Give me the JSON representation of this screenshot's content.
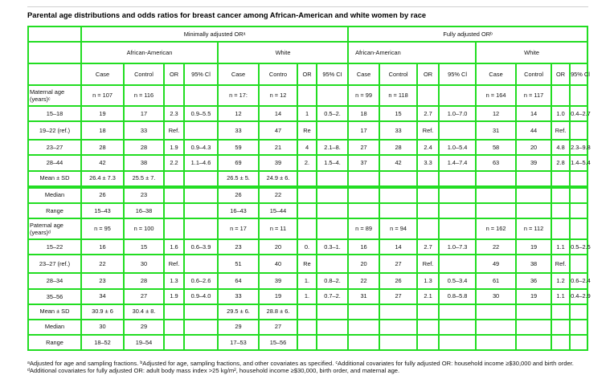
{
  "title": "Parental age distributions and odds ratios for breast cancer among African-American and white women by race",
  "headers": {
    "minimally_adjusted": "Minimally adjusted ORᵃ",
    "fully_adjusted": "Fully adjusted ORᵇ",
    "african_american": "African-American",
    "white": "White",
    "case": "Case",
    "control": "Control",
    "control_cut": "Contro",
    "or": "OR",
    "or_cut": "OR",
    "ci": "95% CI",
    "ci_cut": "95% Cl",
    "n_prefix": "n ="
  },
  "maternal_label": "Maternal age (years)ᶜ",
  "paternal_label": "Paternal age (years)ᵈ",
  "rows": {
    "maternal_n": {
      "label": "Maternal age (years)ᶜ",
      "cells": [
        "n = 107",
        "n = 116",
        "",
        "",
        "n = 17:",
        "n = 12",
        "",
        "",
        "n = 99",
        "n = 118",
        "",
        "",
        "n = 164",
        "n = 117",
        "",
        ""
      ]
    },
    "m_15_18": {
      "label": "15–18",
      "cells": [
        "19",
        "17",
        "2.3",
        "0.9–5.5",
        "12",
        "14",
        "1",
        "0.5–2.",
        "18",
        "15",
        "2.7",
        "1.0–7.0",
        "12",
        "14",
        "1.0",
        "0.4–2.7"
      ]
    },
    "m_19_22": {
      "label": "19–22 (ref.)",
      "cells": [
        "18",
        "33",
        "Ref.",
        "",
        "33",
        "47",
        "Re",
        "",
        "17",
        "33",
        "Ref.",
        "",
        "31",
        "44",
        "Ref.",
        ""
      ]
    },
    "m_23_27": {
      "label": "23–27",
      "cells": [
        "28",
        "28",
        "1.9",
        "0.9–4.3",
        "59",
        "21",
        "4",
        "2.1–8.",
        "27",
        "28",
        "2.4",
        "1.0–5.4",
        "58",
        "20",
        "4.8",
        "2.3–9.8"
      ]
    },
    "m_28_44": {
      "label": "28–44",
      "cells": [
        "42",
        "38",
        "2.2",
        "1.1–4.6",
        "69",
        "39",
        "2.",
        "1.5–4.",
        "37",
        "42",
        "3.3",
        "1.4–7.4",
        "63",
        "39",
        "2.8",
        "1.4–5.4"
      ]
    },
    "m_mean": {
      "label": "Mean ± SD",
      "cells": [
        "26.4 ± 7.3",
        "25.5 ± 7.",
        "",
        "",
        "26.5 ± 5.",
        "24.9 ± 6.",
        "",
        "",
        "",
        "",
        "",
        "",
        "",
        "",
        "",
        ""
      ]
    },
    "m_median": {
      "label": "Median",
      "cells": [
        "26",
        "23",
        "",
        "",
        "26",
        "22",
        "",
        "",
        "",
        "",
        "",
        "",
        "",
        "",
        "",
        ""
      ]
    },
    "m_range": {
      "label": "Range",
      "cells": [
        "15–43",
        "16–38",
        "",
        "",
        "16–43",
        "15–44",
        "",
        "",
        "",
        "",
        "",
        "",
        "",
        "",
        "",
        ""
      ]
    },
    "paternal_n": {
      "label": "Paternal age (years)ᵈ",
      "cells": [
        "n = 95",
        "n = 100",
        "",
        "",
        "n = 17",
        "n = 11",
        "",
        "",
        "n = 89",
        "n = 94",
        "",
        "",
        "n = 162",
        "n = 112",
        "",
        ""
      ]
    },
    "p_15_22": {
      "label": "15–22",
      "cells": [
        "16",
        "15",
        "1.6",
        "0.6–3.9",
        "23",
        "20",
        "0.",
        "0.3–1.",
        "16",
        "14",
        "2.7",
        "1.0–7.3",
        "22",
        "19",
        "1.1",
        "0.5–2.5"
      ]
    },
    "p_23_27": {
      "label": "23–27 (ref.)",
      "cells": [
        "22",
        "30",
        "Ref.",
        "",
        "51",
        "40",
        "Re",
        "",
        "20",
        "27",
        "Ref.",
        "",
        "49",
        "38",
        "Ref.",
        ""
      ]
    },
    "p_28_34": {
      "label": "28–34",
      "cells": [
        "23",
        "28",
        "1.3",
        "0.6–2.6",
        "64",
        "39",
        "1.",
        "0.8–2.",
        "22",
        "26",
        "1.3",
        "0.5–3.4",
        "61",
        "36",
        "1.2",
        "0.6–2.4"
      ]
    },
    "p_35_56": {
      "label": "35–56",
      "cells": [
        "34",
        "27",
        "1.9",
        "0.9–4.0",
        "33",
        "19",
        "1.",
        "0.7–2.",
        "31",
        "27",
        "2.1",
        "0.8–5.8",
        "30",
        "19",
        "1.1",
        "0.4–2.9"
      ]
    },
    "p_mean": {
      "label": "Mean ± SD",
      "cells": [
        "30.9 ± 6",
        "30.4 ± 8.",
        "",
        "",
        "29.5 ± 6.",
        "28.8 ± 6.",
        "",
        "",
        "",
        "",
        "",
        "",
        "",
        "",
        "",
        ""
      ]
    },
    "p_median": {
      "label": "Median",
      "cells": [
        "30",
        "29",
        "",
        "",
        "29",
        "27",
        "",
        "",
        "",
        "",
        "",
        "",
        "",
        "",
        "",
        ""
      ]
    },
    "p_range": {
      "label": "Range",
      "cells": [
        "18–52",
        "19–54",
        "",
        "",
        "17–53",
        "15–56",
        "",
        "",
        "",
        "",
        "",
        "",
        "",
        "",
        "",
        ""
      ]
    }
  },
  "footnote": "ᵃAdjusted for age and sampling fractions. ᵇAdjusted for age, sampling fractions, and other covariates as specified. ᶜAdditional covariates for fully adjusted OR: household income ≥$30,000 and birth order. ᵈAdditional covariates for fully adjusted OR: adult body mass index >25 kg/m², household income ≥$30,000, birth order, and maternal age."
}
